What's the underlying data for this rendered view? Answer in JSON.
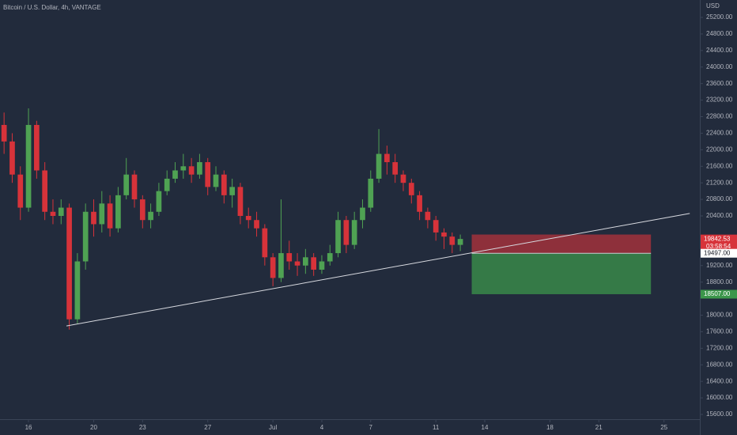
{
  "chart_data": {
    "type": "candlestick",
    "title": "Bitcoin / U.S. Dollar, 4h, VANTAGE",
    "currency": "USD",
    "countdown": "03:58:54",
    "up_color": "#4fa253",
    "down_color": "#d7333a",
    "xlim": [
      14.25,
      57.2
    ],
    "ylim": [
      15485,
      25621
    ],
    "xticks": [
      16,
      20,
      23,
      27,
      {
        "value": 31,
        "label": "Jul"
      },
      {
        "value": 34,
        "label": "4"
      },
      {
        "value": 37,
        "label": "7"
      },
      {
        "value": 41,
        "label": "11"
      },
      {
        "value": 44,
        "label": "14"
      },
      {
        "value": 48,
        "label": "18"
      },
      {
        "value": 51,
        "label": "21"
      },
      {
        "value": 55,
        "label": "25"
      }
    ],
    "yticks": [
      {
        "value": 15600,
        "label": "15600.00"
      },
      {
        "value": 16000,
        "label": "16000.00"
      },
      {
        "value": 16400,
        "label": "16400.00"
      },
      {
        "value": 16800,
        "label": "16800.00"
      },
      {
        "value": 17200,
        "label": "17200.00"
      },
      {
        "value": 17600,
        "label": "17600.00"
      },
      {
        "value": 18000,
        "label": "18000.00"
      },
      {
        "value": 18800,
        "label": "18800.00"
      },
      {
        "value": 19200,
        "label": "19200.00"
      },
      {
        "value": 20400,
        "label": "20400.00"
      },
      {
        "value": 20800,
        "label": "20800.00"
      },
      {
        "value": 21200,
        "label": "21200.00"
      },
      {
        "value": 21600,
        "label": "21600.00"
      },
      {
        "value": 22000,
        "label": "22000.00"
      },
      {
        "value": 22400,
        "label": "22400.00"
      },
      {
        "value": 22800,
        "label": "22800.00"
      },
      {
        "value": 23200,
        "label": "23200.00"
      },
      {
        "value": 23600,
        "label": "23600.00"
      },
      {
        "value": 24000,
        "label": "24000.00"
      },
      {
        "value": 24400,
        "label": "24400.00"
      },
      {
        "value": 24800,
        "label": "24800.00"
      },
      {
        "value": 25200,
        "label": "25200.00"
      }
    ],
    "candles": {
      "x": [
        14.5,
        15,
        15.5,
        16,
        16.5,
        17,
        17.5,
        18,
        18.5,
        19,
        19.5,
        20,
        20.5,
        21,
        21.5,
        22,
        22.5,
        23,
        23.5,
        24,
        24.5,
        25,
        25.5,
        26,
        26.5,
        27,
        27.5,
        28,
        28.5,
        29,
        29.5,
        30,
        30.5,
        31,
        31.5,
        32,
        32.5,
        33,
        33.5,
        34,
        34.5,
        35,
        35.5,
        36,
        36.5,
        37,
        37.5,
        38,
        38.5,
        39,
        39.5,
        40,
        40.5,
        41,
        41.5,
        42,
        42.5
      ],
      "open": [
        22600,
        22200,
        21400,
        20600,
        22600,
        21500,
        20500,
        20400,
        20600,
        17900,
        19300,
        20500,
        20200,
        20700,
        20100,
        20900,
        21400,
        20800,
        20300,
        20500,
        21000,
        21300,
        21500,
        21600,
        21400,
        21700,
        21100,
        21400,
        20900,
        21100,
        20400,
        20300,
        20100,
        19400,
        18900,
        19500,
        19300,
        19200,
        19400,
        19100,
        19300,
        19500,
        20300,
        19700,
        20300,
        20600,
        21300,
        21900,
        21700,
        21400,
        21200,
        20900,
        20500,
        20300,
        20000,
        19900,
        19700
      ],
      "high": [
        22900,
        22400,
        21600,
        23000,
        22700,
        21700,
        20800,
        20800,
        20700,
        19500,
        20700,
        20800,
        21000,
        20900,
        21100,
        21800,
        21500,
        20900,
        20700,
        21200,
        21500,
        21700,
        21900,
        21800,
        21900,
        21800,
        21600,
        21500,
        21300,
        21200,
        20600,
        20500,
        20200,
        19500,
        20800,
        19800,
        19500,
        19600,
        19500,
        19450,
        19700,
        20500,
        20400,
        20500,
        20800,
        21500,
        22500,
        22100,
        21900,
        21500,
        21300,
        21000,
        20600,
        20400,
        20100,
        20000,
        19950
      ],
      "low": [
        21900,
        21200,
        20300,
        20500,
        21300,
        20300,
        20200,
        20200,
        17650,
        17800,
        19100,
        19900,
        20000,
        19900,
        20000,
        20800,
        20600,
        20100,
        20100,
        20400,
        20900,
        21200,
        21300,
        21200,
        21300,
        20900,
        21000,
        20700,
        20600,
        20200,
        20100,
        19900,
        19200,
        18700,
        18800,
        19100,
        18950,
        19000,
        18950,
        19000,
        19200,
        19400,
        19500,
        19600,
        20100,
        20500,
        21200,
        21400,
        21200,
        21000,
        20700,
        20300,
        20100,
        19800,
        19600,
        19500,
        19550
      ],
      "close": [
        22200,
        21400,
        20600,
        22600,
        21500,
        20500,
        20400,
        20600,
        17900,
        19300,
        20500,
        20200,
        20700,
        20100,
        20900,
        21400,
        20800,
        20300,
        20500,
        21000,
        21300,
        21500,
        21600,
        21400,
        21700,
        21100,
        21400,
        20900,
        21100,
        20400,
        20300,
        20100,
        19400,
        18900,
        19500,
        19300,
        19200,
        19400,
        19100,
        19300,
        19500,
        20300,
        19700,
        20300,
        20600,
        21300,
        21900,
        21700,
        21400,
        21200,
        20900,
        20500,
        20300,
        20000,
        19900,
        19700,
        19842.53
      ]
    },
    "current_price": {
      "value": 19842.53,
      "label": "19842.53"
    },
    "trendline": {
      "x": [
        18.33,
        56.58
      ],
      "y": [
        17740,
        20460
      ]
    },
    "position": {
      "x": [
        43.2,
        54.2
      ],
      "stop": 19950,
      "entry": {
        "value": 19497,
        "label": "19497.00"
      },
      "target": {
        "value": 18507,
        "label": "18507.00"
      }
    }
  }
}
